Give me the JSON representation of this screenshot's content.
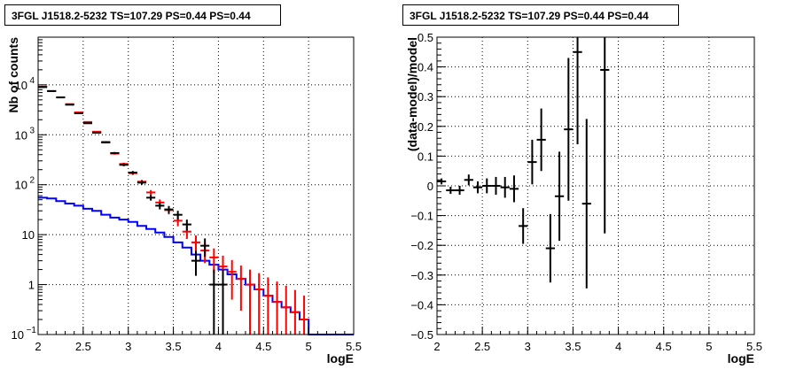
{
  "chart_data": [
    {
      "type": "histogram",
      "title": "3FGL J1518.2-5232 TS=107.29 PS=0.44 PS=0.44",
      "xlabel": "logE",
      "ylabel": "Nb of counts",
      "xlim": [
        2,
        5.5
      ],
      "ylim": [
        0.1,
        90000
      ],
      "y_log": true,
      "grid": true,
      "x_ticks": [
        "2",
        "2.5",
        "3",
        "3.5",
        "4",
        "4.5",
        "5",
        "5.5"
      ],
      "y_ticks": [
        {
          "label": "1",
          "exp": "",
          "value": 1
        },
        {
          "label": "10",
          "exp": "",
          "value": 10
        },
        {
          "label": "10",
          "exp": "2",
          "value": 100
        },
        {
          "label": "10",
          "exp": "3",
          "value": 1000
        },
        {
          "label": "10",
          "exp": "4",
          "value": 10000
        }
      ],
      "y_floor_label": "10",
      "y_floor_exp": "−1",
      "series": [
        {
          "color": "#000000",
          "x": [
            2.05,
            2.15,
            2.25,
            2.35,
            2.45,
            2.55,
            2.65,
            2.75,
            2.85,
            2.95,
            3.05,
            3.15,
            3.25,
            3.35,
            3.45,
            3.55,
            3.65,
            3.75,
            3.85,
            3.95,
            4.05
          ],
          "y": [
            9000,
            7500,
            5600,
            4000,
            2700,
            1700,
            1100,
            700,
            430,
            250,
            175,
            110,
            55,
            38,
            32,
            25,
            16,
            3,
            6,
            1,
            1
          ],
          "yerr_low": [
            95,
            87,
            75,
            63,
            52,
            41,
            33,
            26,
            21,
            16,
            13,
            10,
            7,
            6,
            5.5,
            5,
            4,
            1.5,
            2.4,
            0.9,
            0.9
          ],
          "yerr_high": [
            95,
            87,
            75,
            63,
            52,
            41,
            33,
            26,
            21,
            16,
            13,
            10,
            7,
            6,
            5.5,
            5,
            4,
            1.8,
            2.4,
            1,
            1
          ]
        },
        {
          "color": "#ff0000",
          "x": [
            2.05,
            2.15,
            2.25,
            2.35,
            2.45,
            2.55,
            2.65,
            2.75,
            2.85,
            2.95,
            3.05,
            3.15,
            3.25,
            3.35,
            3.45,
            3.55,
            3.65,
            3.75,
            3.85,
            3.95,
            4.05,
            4.15,
            4.25,
            4.35,
            4.45,
            4.55,
            4.65,
            4.75,
            4.85,
            4.95
          ],
          "y": [
            9200,
            7500,
            5600,
            4100,
            2800,
            1800,
            1150,
            720,
            420,
            260,
            170,
            115,
            70,
            44,
            31,
            19,
            11.5,
            7,
            4.8,
            3.5,
            2.3,
            1.8,
            1.3,
            1.0,
            0.8,
            0.6,
            0.45,
            0.35,
            0.28,
            0.2
          ],
          "yerr_low": [
            96,
            87,
            75,
            64,
            53,
            42,
            34,
            27,
            20,
            16,
            13,
            10,
            8,
            6.6,
            5.5,
            4.3,
            3.3,
            2.6,
            2.1,
            1.8,
            1.5,
            1.3,
            1.0,
            0.9,
            0.79,
            0.59,
            0.44,
            0.34,
            0.27,
            0.19
          ],
          "yerr_high": [
            96,
            87,
            75,
            64,
            53,
            42,
            34,
            27,
            20,
            16,
            13,
            10,
            8,
            6.6,
            5.5,
            4.3,
            3.3,
            2.6,
            2.1,
            1.8,
            1.5,
            1.3,
            1.1,
            1.0,
            0.9,
            0.8,
            0.7,
            0.6,
            0.5,
            0.4
          ]
        },
        {
          "color": "#0000ff",
          "step": true,
          "bin_edges": [
            2.0,
            2.1,
            2.2,
            2.3,
            2.4,
            2.5,
            2.6,
            2.7,
            2.8,
            2.9,
            3.0,
            3.1,
            3.2,
            3.3,
            3.4,
            3.5,
            3.6,
            3.7,
            3.8,
            3.9,
            4.0,
            4.1,
            4.2,
            4.3,
            4.4,
            4.5,
            4.6,
            4.7,
            4.8,
            4.9,
            5.0,
            5.5
          ],
          "values": [
            55,
            53,
            47,
            42,
            38,
            33,
            30,
            25,
            22,
            20,
            18,
            15,
            13,
            11,
            9,
            7,
            5.5,
            4,
            3,
            2.5,
            2.0,
            1.6,
            1.3,
            1.0,
            0.8,
            0.6,
            0.45,
            0.35,
            0.28,
            0.2,
            0.1
          ]
        }
      ]
    },
    {
      "type": "scatter",
      "title": "3FGL J1518.2-5232 TS=107.29 PS=0.44 PS=0.44",
      "xlabel": "logE",
      "ylabel": "(data-model)/model",
      "xlim": [
        2,
        5.5
      ],
      "ylim": [
        -0.5,
        0.5
      ],
      "grid": true,
      "x_ticks": [
        "2",
        "2.5",
        "3",
        "3.5",
        "4",
        "4.5",
        "5",
        "5.5"
      ],
      "y_ticks": [
        "−0.5",
        "−0.4",
        "−0.3",
        "−0.2",
        "−0.1",
        "0",
        "0.1",
        "0.2",
        "0.3",
        "0.4",
        "0.5"
      ],
      "series": [
        {
          "color": "#000000",
          "x": [
            2.05,
            2.15,
            2.25,
            2.35,
            2.45,
            2.55,
            2.65,
            2.75,
            2.85,
            2.95,
            3.05,
            3.15,
            3.25,
            3.35,
            3.45,
            3.55,
            3.65,
            3.85
          ],
          "y": [
            0.015,
            -0.015,
            -0.015,
            0.02,
            -0.005,
            0.0,
            0.0,
            -0.005,
            -0.01,
            -0.135,
            0.08,
            0.155,
            -0.21,
            -0.035,
            0.19,
            0.45,
            -0.06,
            0.39
          ],
          "yerr": [
            0.01,
            0.012,
            0.015,
            0.018,
            0.02,
            0.025,
            0.03,
            0.035,
            0.045,
            0.06,
            0.075,
            0.105,
            0.115,
            0.15,
            0.24,
            0.31,
            0.285,
            0.55
          ]
        }
      ]
    }
  ]
}
